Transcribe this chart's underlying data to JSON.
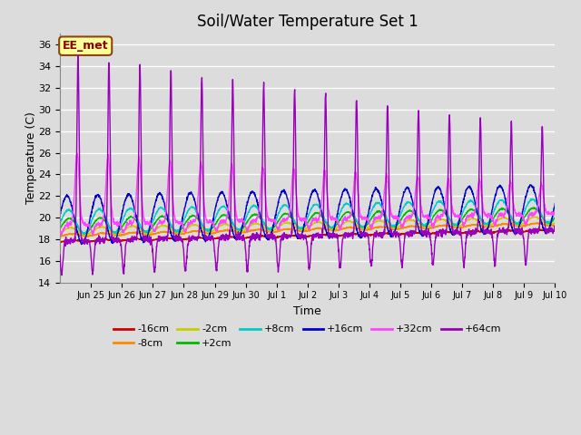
{
  "title": "Soil/Water Temperature Set 1",
  "xlabel": "Time",
  "ylabel": "Temperature (C)",
  "ylim": [
    14,
    37
  ],
  "yticks": [
    14,
    16,
    18,
    20,
    22,
    24,
    26,
    28,
    30,
    32,
    34,
    36
  ],
  "plot_bg_color": "#dcdcdc",
  "grid_color": "#ffffff",
  "annotation_text": "EE_met",
  "annotation_bg": "#ffff99",
  "annotation_border": "#8B4513",
  "annotation_text_color": "#8B0000",
  "series_colors": {
    "-16cm": "#cc0000",
    "-8cm": "#ff8800",
    "-2cm": "#cccc00",
    "+2cm": "#00bb00",
    "+8cm": "#00cccc",
    "+16cm": "#0000cc",
    "+32cm": "#ff44ff",
    "+64cm": "#9900bb"
  },
  "tick_labels": [
    "Jun 25",
    "Jun 26",
    "Jun 27",
    "Jun 28",
    "Jun 29",
    "Jun 30",
    "Jul 1",
    "Jul 2",
    "Jul 3",
    "Jul 4",
    "Jul 5",
    "Jul 6",
    "Jul 7",
    "Jul 8",
    "Jul 9",
    "Jul 10"
  ]
}
